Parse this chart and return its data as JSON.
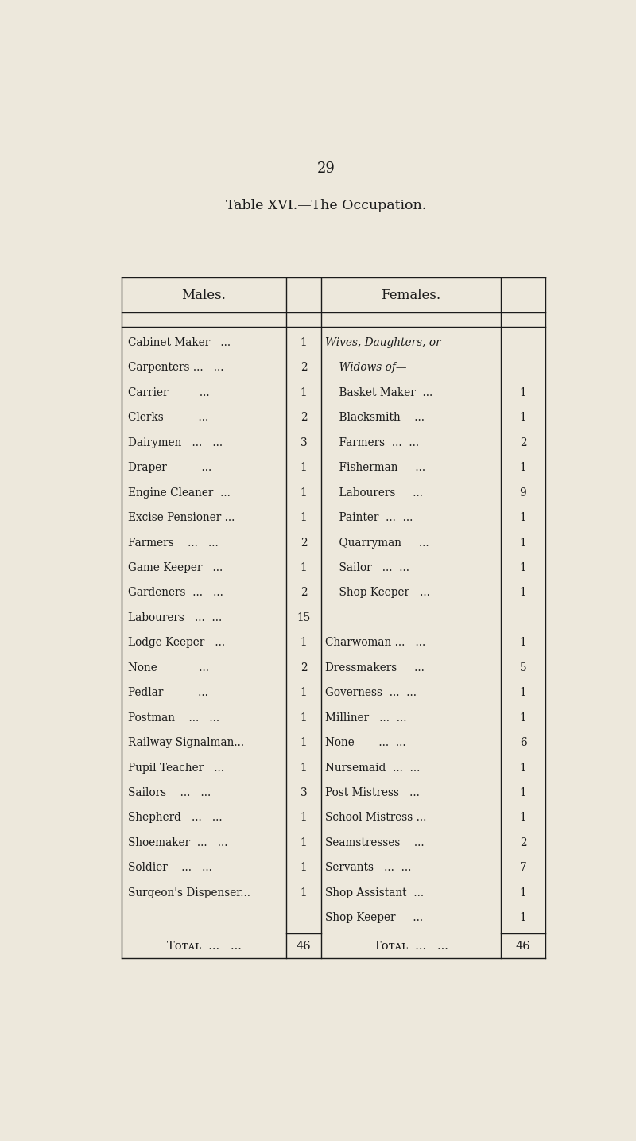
{
  "page_number": "29",
  "title": "Table XVI.—The Occupation.",
  "bg_color": "#ede8dc",
  "text_color": "#1a1a1a",
  "males_header": "Males.",
  "females_header": "Females.",
  "males_rows": [
    [
      "Cabinet Maker   ...",
      "1"
    ],
    [
      "Carpenters ...   ...",
      "2"
    ],
    [
      "Carrier         ...",
      "1"
    ],
    [
      "Clerks          ...",
      "2"
    ],
    [
      "Dairymen   ...   ...",
      "3"
    ],
    [
      "Draper          ...",
      "1"
    ],
    [
      "Engine Cleaner  ...",
      "1"
    ],
    [
      "Excise Pensioner ...",
      "1"
    ],
    [
      "Farmers    ...   ...",
      "2"
    ],
    [
      "Game Keeper   ...",
      "1"
    ],
    [
      "Gardeners  ...   ...",
      "2"
    ],
    [
      "Labourers   ...  ...",
      "15"
    ],
    [
      "Lodge Keeper   ...",
      "1"
    ],
    [
      "None            ...",
      "2"
    ],
    [
      "Pedlar          ...",
      "1"
    ],
    [
      "Postman    ...   ...",
      "1"
    ],
    [
      "Railway Signalman...",
      "1"
    ],
    [
      "Pupil Teacher   ...",
      "1"
    ],
    [
      "Sailors    ...   ...",
      "3"
    ],
    [
      "Shepherd   ...   ...",
      "1"
    ],
    [
      "Shoemaker  ...   ...",
      "1"
    ],
    [
      "Soldier    ...   ...",
      "1"
    ],
    [
      "Surgeon's Dispenser...",
      "1"
    ]
  ],
  "females_rows": [
    [
      "Wives, Daughters, or",
      "",
      true
    ],
    [
      "    Widows of—",
      "",
      true
    ],
    [
      "    Basket Maker  ...",
      "1",
      false
    ],
    [
      "    Blacksmith    ...",
      "1",
      false
    ],
    [
      "    Farmers  ...  ...",
      "2",
      false
    ],
    [
      "    Fisherman     ...",
      "1",
      false
    ],
    [
      "    Labourers     ...",
      "9",
      false
    ],
    [
      "    Painter  ...  ...",
      "1",
      false
    ],
    [
      "    Quarryman     ...",
      "1",
      false
    ],
    [
      "    Sailor   ...  ...",
      "1",
      false
    ],
    [
      "    Shop Keeper   ...",
      "1",
      false
    ],
    [
      "",
      "",
      false
    ],
    [
      "Charwoman ...   ...",
      "1",
      false
    ],
    [
      "Dressmakers     ...",
      "5",
      false
    ],
    [
      "Governess  ...  ...",
      "1",
      false
    ],
    [
      "Milliner   ...  ...",
      "1",
      false
    ],
    [
      "None       ...  ...",
      "6",
      false
    ],
    [
      "Nursemaid  ...  ...",
      "1",
      false
    ],
    [
      "Post Mistress   ...",
      "1",
      false
    ],
    [
      "School Mistress ...",
      "1",
      false
    ],
    [
      "Seamstresses    ...",
      "2",
      false
    ],
    [
      "Servants   ...  ...",
      "7",
      false
    ],
    [
      "Shop Assistant  ...",
      "1",
      false
    ],
    [
      "Shop Keeper     ...",
      "1",
      false
    ]
  ],
  "males_total": "46",
  "females_total": "46"
}
